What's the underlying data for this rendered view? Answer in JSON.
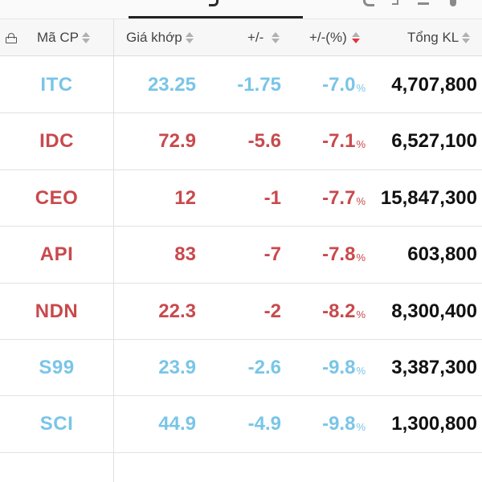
{
  "colors": {
    "floor": "#79c5e8",
    "down": "#c9494d",
    "volume": "#111111",
    "sort_active": "#e5323b"
  },
  "header": {
    "symbol": "Mã CP",
    "price": "Giá khớp",
    "change": "+/-",
    "percent": "+/-(%)",
    "volume": "Tổng KL"
  },
  "rows": [
    {
      "symbol": "ITC",
      "price": "23.25",
      "change": "-1.75",
      "percent": "-7.0",
      "unit": "%",
      "volume": "4,707,800",
      "color": "floor"
    },
    {
      "symbol": "IDC",
      "price": "72.9",
      "change": "-5.6",
      "percent": "-7.1",
      "unit": "%",
      "volume": "6,527,100",
      "color": "down"
    },
    {
      "symbol": "CEO",
      "price": "12",
      "change": "-1",
      "percent": "-7.7",
      "unit": "%",
      "volume": "15,847,300",
      "color": "down"
    },
    {
      "symbol": "API",
      "price": "83",
      "change": "-7",
      "percent": "-7.8",
      "unit": "%",
      "volume": "603,800",
      "color": "down"
    },
    {
      "symbol": "NDN",
      "price": "22.3",
      "change": "-2",
      "percent": "-8.2",
      "unit": "%",
      "volume": "8,300,400",
      "color": "down"
    },
    {
      "symbol": "S99",
      "price": "23.9",
      "change": "-2.6",
      "percent": "-9.8",
      "unit": "%",
      "volume": "3,387,300",
      "color": "floor"
    },
    {
      "symbol": "SCI",
      "price": "44.9",
      "change": "-4.9",
      "percent": "-9.8",
      "unit": "%",
      "volume": "1,300,800",
      "color": "floor"
    }
  ]
}
